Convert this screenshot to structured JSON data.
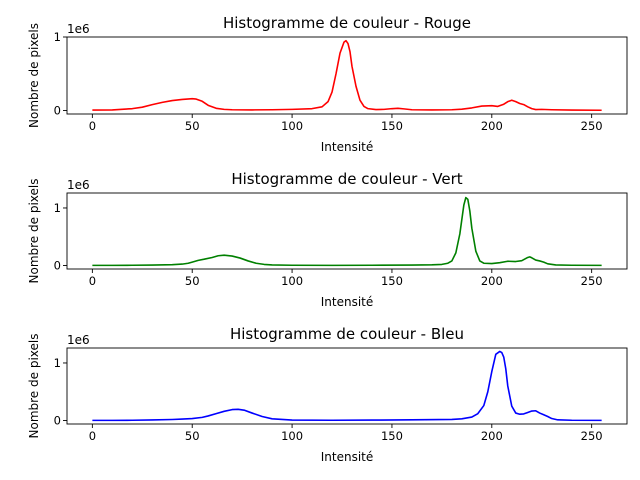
{
  "chart_data": [
    {
      "type": "line",
      "title": "Histogramme de couleur - Rouge",
      "xlabel": "Intensité",
      "ylabel": "Nombre de pixels",
      "offset_text": "1e6",
      "xlim": [
        -12.7,
        267.7
      ],
      "ylim": [
        -48000,
        1000000
      ],
      "x_ticks": [
        0,
        50,
        100,
        150,
        200,
        250
      ],
      "y_ticks": [
        0,
        1
      ],
      "grid": false,
      "color": "#ff0000",
      "series": [
        {
          "x": [
            0,
            10,
            20,
            25,
            30,
            35,
            40,
            45,
            50,
            52,
            55,
            58,
            62,
            66,
            70,
            80,
            90,
            100,
            110,
            115,
            118,
            120,
            122,
            124,
            126,
            127,
            128,
            129,
            130,
            132,
            134,
            136,
            138,
            142,
            146,
            150,
            153,
            156,
            160,
            170,
            180,
            185,
            190,
            195,
            200,
            203,
            206,
            208,
            210,
            212,
            214,
            216,
            218,
            220,
            222,
            225,
            230,
            240,
            255
          ],
          "y": [
            5000,
            8000,
            25000,
            45000,
            80000,
            110000,
            135000,
            150000,
            160000,
            155000,
            125000,
            70000,
            30000,
            15000,
            10000,
            8000,
            10000,
            15000,
            25000,
            50000,
            120000,
            250000,
            500000,
            780000,
            930000,
            950000,
            910000,
            800000,
            600000,
            330000,
            140000,
            55000,
            25000,
            12000,
            15000,
            25000,
            30000,
            22000,
            10000,
            8000,
            10000,
            18000,
            35000,
            60000,
            65000,
            55000,
            85000,
            120000,
            140000,
            120000,
            95000,
            80000,
            50000,
            25000,
            12000,
            15000,
            10000,
            5000,
            3000
          ]
        }
      ]
    },
    {
      "type": "line",
      "title": "Histogramme de couleur - Vert",
      "xlabel": "Intensité",
      "ylabel": "Nombre de pixels",
      "offset_text": "1e6",
      "xlim": [
        -12.7,
        267.7
      ],
      "ylim": [
        -60000,
        1260000
      ],
      "x_ticks": [
        0,
        50,
        100,
        150,
        200,
        250
      ],
      "y_ticks": [
        0,
        1
      ],
      "grid": false,
      "color": "#008000",
      "series": [
        {
          "x": [
            0,
            10,
            20,
            30,
            40,
            45,
            48,
            50,
            53,
            56,
            60,
            63,
            66,
            70,
            74,
            78,
            82,
            86,
            90,
            100,
            120,
            140,
            160,
            170,
            175,
            178,
            180,
            182,
            184,
            186,
            187,
            188,
            189,
            190,
            192,
            194,
            196,
            200,
            204,
            208,
            212,
            215,
            218,
            219,
            220,
            222,
            224,
            226,
            228,
            232,
            240,
            255
          ],
          "y": [
            3000,
            3000,
            5000,
            8000,
            15000,
            25000,
            40000,
            60000,
            90000,
            110000,
            140000,
            170000,
            180000,
            165000,
            130000,
            80000,
            40000,
            20000,
            10000,
            5000,
            3000,
            5000,
            8000,
            12000,
            20000,
            40000,
            80000,
            220000,
            550000,
            1050000,
            1180000,
            1150000,
            950000,
            650000,
            250000,
            80000,
            40000,
            35000,
            50000,
            75000,
            70000,
            85000,
            140000,
            150000,
            135000,
            95000,
            80000,
            60000,
            30000,
            10000,
            5000,
            3000
          ]
        }
      ]
    },
    {
      "type": "line",
      "title": "Histogramme de couleur - Bleu",
      "xlabel": "Intensité",
      "ylabel": "Nombre de pixels",
      "offset_text": "1e6",
      "xlim": [
        -12.7,
        267.7
      ],
      "ylim": [
        -60000,
        1260000
      ],
      "x_ticks": [
        0,
        50,
        100,
        150,
        200,
        250
      ],
      "y_ticks": [
        0,
        1
      ],
      "grid": false,
      "color": "#0000ff",
      "series": [
        {
          "x": [
            0,
            10,
            20,
            30,
            40,
            45,
            50,
            55,
            58,
            62,
            66,
            70,
            73,
            76,
            80,
            85,
            90,
            100,
            120,
            140,
            160,
            180,
            185,
            190,
            193,
            196,
            198,
            200,
            202,
            204,
            205,
            206,
            207,
            208,
            210,
            212,
            214,
            216,
            218,
            220,
            222,
            224,
            226,
            228,
            230,
            233,
            240,
            255
          ],
          "y": [
            3000,
            3000,
            5000,
            10000,
            18000,
            25000,
            35000,
            55000,
            80000,
            120000,
            160000,
            190000,
            195000,
            180000,
            130000,
            70000,
            30000,
            8000,
            5000,
            8000,
            12000,
            20000,
            30000,
            60000,
            120000,
            260000,
            500000,
            850000,
            1150000,
            1200000,
            1180000,
            1100000,
            900000,
            600000,
            250000,
            130000,
            110000,
            115000,
            140000,
            165000,
            170000,
            130000,
            100000,
            70000,
            35000,
            12000,
            5000,
            3000
          ]
        }
      ]
    }
  ]
}
